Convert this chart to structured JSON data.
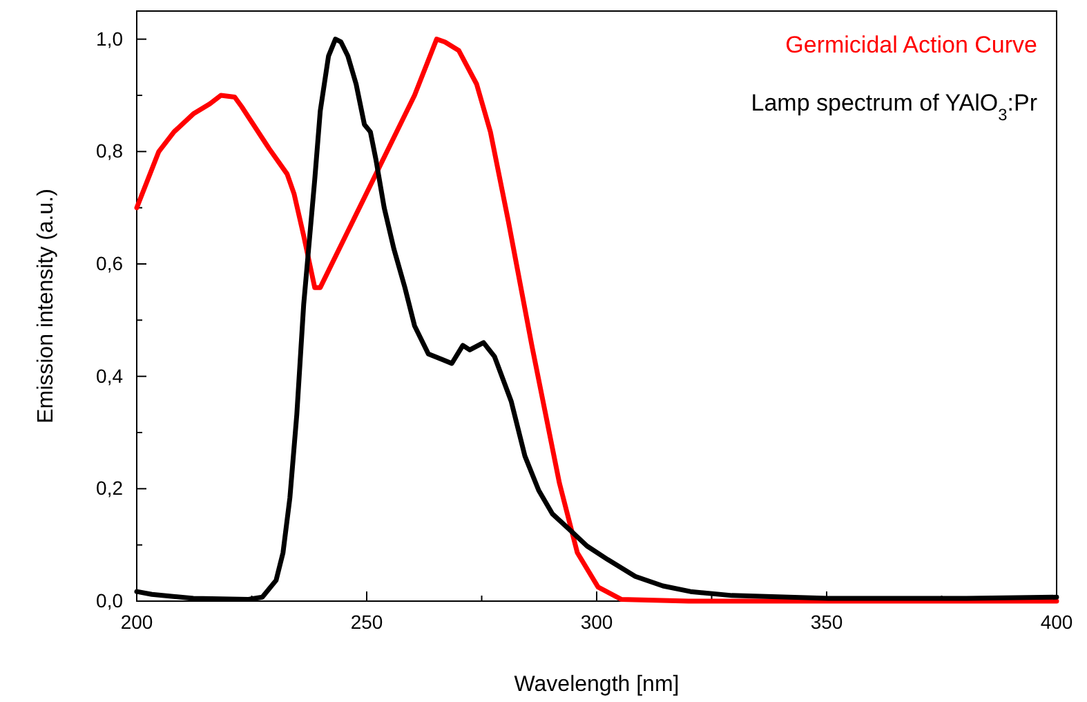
{
  "chart_data": {
    "type": "line",
    "xlabel": "Wavelength [nm]",
    "ylabel": "Emission intensity (a.u.)",
    "xlim": [
      200,
      400
    ],
    "xticks": [
      200,
      250,
      300,
      350,
      400
    ],
    "ylim": [
      0,
      1.05
    ],
    "yticks": [
      {
        "value": 0,
        "label": "0,0"
      },
      {
        "value": 0.2,
        "label": "0,2"
      },
      {
        "value": 0.4,
        "label": "0,4"
      },
      {
        "value": 0.6,
        "label": "0,6"
      },
      {
        "value": 0.8,
        "label": "0,8"
      },
      {
        "value": 1.0,
        "label": "1,0"
      }
    ],
    "grid": false,
    "legend": "top right",
    "line_style": "solid",
    "marker": "none",
    "series": [
      {
        "name": "Germicidal Action Curve",
        "color": "#ff0000",
        "x": [
          200,
          204.8,
          208.1,
          212.3,
          215.9,
          218.3,
          221.3,
          222.8,
          228.8,
          232.7,
          234.2,
          236.3,
          238.7,
          239.9,
          260.4,
          265.2,
          267,
          270,
          273.9,
          276.9,
          280.8,
          285.9,
          291.9,
          295.8,
          300.3,
          305.4,
          320,
          400
        ],
        "values": [
          0.7,
          0.8,
          0.835,
          0.867,
          0.885,
          0.9,
          0.897,
          0.88,
          0.805,
          0.76,
          0.725,
          0.65,
          0.558,
          0.558,
          0.9,
          1.0,
          0.995,
          0.98,
          0.92,
          0.835,
          0.676,
          0.455,
          0.21,
          0.086,
          0.025,
          0.003,
          0,
          0
        ]
      },
      {
        "name": "Lamp spectrum of YAlO$_{3}$:Pr",
        "color": "#000000",
        "x": [
          200,
          203.3,
          212.3,
          224.3,
          227.3,
          230.3,
          231.8,
          233.3,
          234.8,
          236.3,
          238.7,
          239.9,
          241.7,
          243.2,
          244.4,
          245.9,
          247.7,
          249.5,
          250.8,
          252,
          253.8,
          255.9,
          258.3,
          260.4,
          263.4,
          266.4,
          268.5,
          270.9,
          272.4,
          275.4,
          277.8,
          281.4,
          284.4,
          287.4,
          290.4,
          294,
          297.9,
          302.4,
          308.4,
          314.4,
          320.4,
          329.4,
          350.4,
          380.4,
          400
        ],
        "values": [
          0.017,
          0.012,
          0.005,
          0.003,
          0.007,
          0.037,
          0.086,
          0.184,
          0.332,
          0.528,
          0.75,
          0.872,
          0.97,
          1.0,
          0.995,
          0.97,
          0.92,
          0.848,
          0.835,
          0.786,
          0.7,
          0.627,
          0.558,
          0.49,
          0.44,
          0.43,
          0.423,
          0.455,
          0.447,
          0.46,
          0.435,
          0.356,
          0.258,
          0.197,
          0.155,
          0.128,
          0.098,
          0.074,
          0.044,
          0.027,
          0.017,
          0.01,
          0.005,
          0.005,
          0.007
        ]
      }
    ]
  }
}
